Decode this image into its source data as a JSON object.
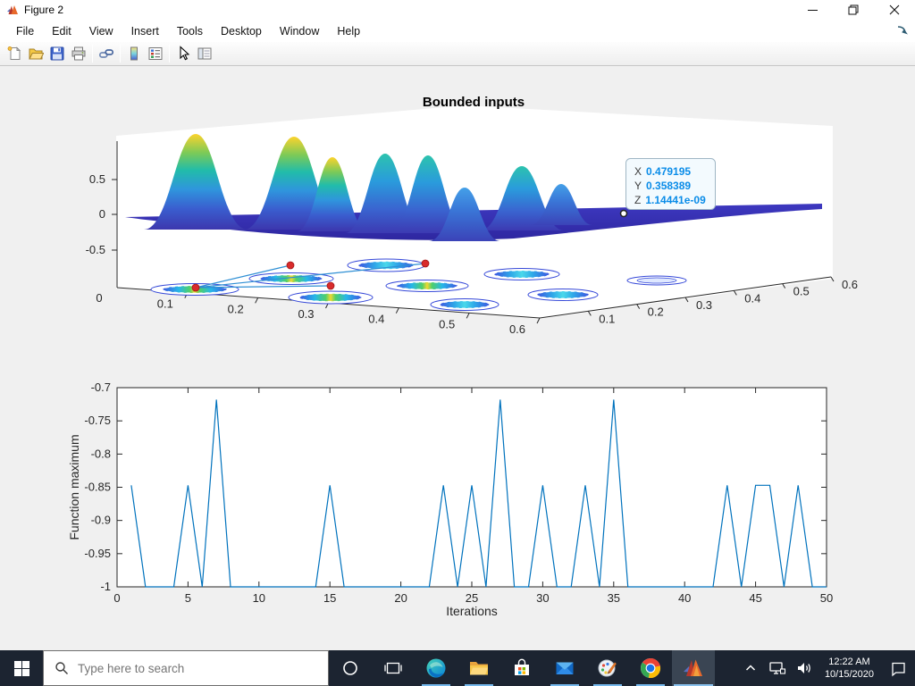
{
  "window": {
    "title": "Figure 2"
  },
  "menu": {
    "items": [
      "File",
      "Edit",
      "View",
      "Insert",
      "Tools",
      "Desktop",
      "Window",
      "Help"
    ]
  },
  "toolbar": {
    "buttons": [
      "new-figure",
      "open-file",
      "save-figure",
      "print-figure",
      "link-plot",
      "insert-colorbar",
      "insert-legend",
      "edit-plot",
      "property-inspector"
    ]
  },
  "figure": {
    "title": "Bounded inputs",
    "datatip": {
      "x_label": "X",
      "x_value": "0.479195",
      "y_label": "Y",
      "y_value": "0.358389",
      "z_label": "Z",
      "z_value": "1.14441e-09"
    }
  },
  "chart_data": [
    {
      "type": "surface",
      "title": "Bounded inputs",
      "xlim": [
        0,
        0.6
      ],
      "ylim": [
        0,
        0.6
      ],
      "x_tick_labels": [
        "0.1",
        "0.2",
        "0.3",
        "0.4",
        "0.5",
        "0.6"
      ],
      "y_tick_labels": [
        "0.1",
        "0.2",
        "0.3",
        "0.4",
        "0.5",
        "0.6"
      ],
      "z_tick_labels": [
        "0.5",
        "0",
        "-0.5"
      ],
      "origin_label": "0",
      "colormap": "parula",
      "description": "3D surface of Gaussian peaks over [0,0.6]x[0,0.6] with projected contour ellipses and red sample points connected by blue lines on the lower plane; datatip marks a point on the flat region",
      "datatip": {
        "X": "0.479195",
        "Y": "0.358389",
        "Z": "1.14441e-09"
      }
    },
    {
      "type": "line",
      "title": "",
      "xlabel": "Iterations",
      "ylabel": "Function maximum",
      "xlim": [
        0,
        50
      ],
      "ylim": [
        -1,
        -0.7
      ],
      "x_tick_labels": [
        "0",
        "5",
        "10",
        "15",
        "20",
        "25",
        "30",
        "35",
        "40",
        "45",
        "50"
      ],
      "y_tick_labels": [
        "-0.7",
        "-0.75",
        "-0.8",
        "-0.85",
        "-0.9",
        "-0.95",
        "-1"
      ],
      "grid": false,
      "legend": null,
      "line_color": "#0072BD",
      "x": [
        1,
        2,
        3,
        4,
        5,
        6,
        7,
        8,
        9,
        10,
        11,
        12,
        13,
        14,
        15,
        16,
        17,
        18,
        19,
        20,
        21,
        22,
        23,
        24,
        25,
        26,
        27,
        28,
        29,
        30,
        31,
        32,
        33,
        34,
        35,
        36,
        37,
        38,
        39,
        40,
        41,
        42,
        43,
        44,
        45,
        46,
        47,
        48,
        49,
        50
      ],
      "y": [
        -0.847,
        -1,
        -1,
        -1,
        -0.847,
        -1,
        -0.718,
        -1,
        -1,
        -1,
        -1,
        -1,
        -1,
        -1,
        -0.847,
        -1,
        -1,
        -1,
        -1,
        -1,
        -1,
        -1,
        -0.847,
        -1,
        -0.847,
        -1,
        -0.718,
        -1,
        -1,
        -0.847,
        -1,
        -1,
        -0.847,
        -1,
        -0.718,
        -1,
        -1,
        -1,
        -1,
        -1,
        -1,
        -1,
        -0.847,
        -1,
        -0.847,
        -0.847,
        -1,
        -0.847,
        -1,
        -1
      ]
    }
  ],
  "taskbar": {
    "search_placeholder": "Type here to search",
    "clock_time": "12:22 AM",
    "clock_date": "10/15/2020",
    "apps": [
      "edge",
      "file-explorer",
      "microsoft-store",
      "mail",
      "paint-3d",
      "chrome",
      "matlab"
    ],
    "active_app": "matlab",
    "tray_icons": [
      "hidden-icons-chevron",
      "network-icon",
      "speaker-icon",
      "action-center-icon"
    ]
  }
}
